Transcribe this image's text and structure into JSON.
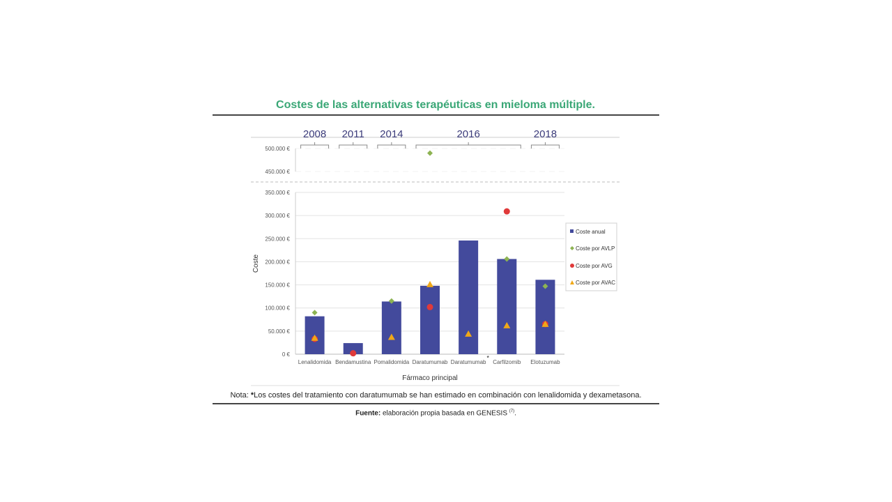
{
  "title": "Costes de las alternativas terapéuticas en mieloma múltiple.",
  "note": {
    "prefix": "Nota: ",
    "star": "*",
    "text": "Los costes del tratamiento con daratumumab se han estimado en combinación con lenalidomida y dexametasona."
  },
  "source": {
    "label": "Fuente:",
    "text": " elaboración propia basada en GENESIS ",
    "ref": "(7)",
    "end": "."
  },
  "colors": {
    "title": "#3aa776",
    "bar": "#434a9c",
    "avlp": "#8db352",
    "avg": "#e03a3a",
    "avac": "#f0a818",
    "year": "#3b3b7a"
  },
  "chart_data": {
    "type": "bar",
    "categories": [
      "Lenalidomida",
      "Bendamustina",
      "Pomalidomida",
      "Daratumumab",
      "Daratumumab",
      "Carfilzomib",
      "Elotuzumab"
    ],
    "category_marks": [
      "",
      "",
      "",
      "",
      "*",
      "",
      ""
    ],
    "year_groups": [
      {
        "label": "2008",
        "categories": [
          0
        ]
      },
      {
        "label": "2011",
        "categories": [
          1
        ]
      },
      {
        "label": "2014",
        "categories": [
          2
        ]
      },
      {
        "label": "2016",
        "categories": [
          3,
          4,
          5
        ]
      },
      {
        "label": "2018",
        "categories": [
          6
        ]
      }
    ],
    "xlabel": "Fármaco principal",
    "ylabel": "Coste",
    "axis_break": true,
    "ylim_lower": [
      0,
      350000
    ],
    "ylim_upper": [
      450000,
      500000
    ],
    "yticks_lower": [
      "0 €",
      "50.000 €",
      "100.000 €",
      "150.000 €",
      "200.000 €",
      "250.000 €",
      "300.000 €",
      "350.000 €"
    ],
    "yticks_upper": [
      "450.000 €",
      "500.000 €"
    ],
    "legend_position": "right",
    "grid": true,
    "series": [
      {
        "name": "Coste anual",
        "kind": "bar",
        "values": [
          82000,
          24000,
          114000,
          148000,
          246000,
          206000,
          161000
        ]
      },
      {
        "name": "Coste por AVLP",
        "kind": "diamond",
        "values": [
          90000,
          null,
          115000,
          null,
          null,
          206000,
          147000
        ],
        "upper_values": [
          null,
          null,
          null,
          490000,
          null,
          null,
          null
        ]
      },
      {
        "name": "Coste por AVG",
        "kind": "circle",
        "values": [
          33000,
          2000,
          null,
          102000,
          null,
          309000,
          65000
        ]
      },
      {
        "name": "Coste por AVAC",
        "kind": "triangle",
        "values": [
          35000,
          null,
          37000,
          151000,
          44000,
          62000,
          65000
        ]
      }
    ]
  }
}
